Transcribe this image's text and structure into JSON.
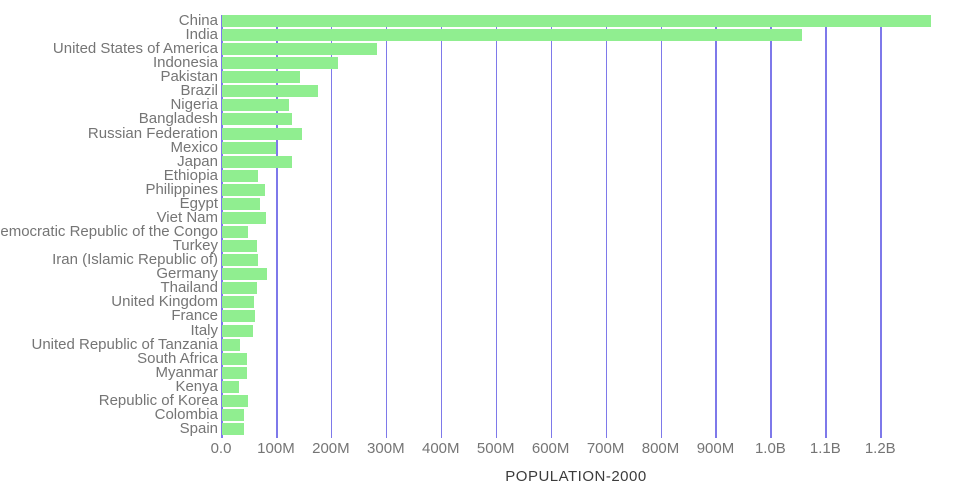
{
  "chart_data": {
    "type": "bar",
    "orientation": "horizontal",
    "title": "",
    "xlabel": "POPULATION-2000",
    "ylabel": "",
    "value_unit": "millions of people",
    "legend": "none",
    "grid": "vertical",
    "categories": [
      "China",
      "India",
      "United States of America",
      "Indonesia",
      "Pakistan",
      "Brazil",
      "Nigeria",
      "Bangladesh",
      "Russian Federation",
      "Mexico",
      "Japan",
      "Ethiopia",
      "Philippines",
      "Egypt",
      "Viet Nam",
      "Democratic Republic of the Congo",
      "Turkey",
      "Iran (Islamic Republic of)",
      "Germany",
      "Thailand",
      "United Kingdom",
      "France",
      "Italy",
      "United Republic of Tanzania",
      "South Africa",
      "Myanmar",
      "Kenya",
      "Republic of Korea",
      "Colombia",
      "Spain"
    ],
    "values": [
      1290.6,
      1056.6,
      281.7,
      211.5,
      142.3,
      174.8,
      122.3,
      127.7,
      146.4,
      98.9,
      126.8,
      66.2,
      78.0,
      68.8,
      79.9,
      47.1,
      63.2,
      65.5,
      81.4,
      63.0,
      58.9,
      59.6,
      56.7,
      33.5,
      45.0,
      45.5,
      30.9,
      46.8,
      39.6,
      40.8
    ],
    "xlim": [
      0,
      1345
    ],
    "xticks": [
      {
        "label": "0.0",
        "m": 0
      },
      {
        "label": "100M",
        "m": 100
      },
      {
        "label": "200M",
        "m": 200
      },
      {
        "label": "300M",
        "m": 300
      },
      {
        "label": "400M",
        "m": 400
      },
      {
        "label": "500M",
        "m": 500
      },
      {
        "label": "600M",
        "m": 600
      },
      {
        "label": "700M",
        "m": 700
      },
      {
        "label": "800M",
        "m": 800
      },
      {
        "label": "900M",
        "m": 900
      },
      {
        "label": "1.0B",
        "m": 1000
      },
      {
        "label": "1.1B",
        "m": 1100
      },
      {
        "label": "1.2B",
        "m": 1200
      }
    ],
    "colors": {
      "bar": "#90ee90",
      "grid": "#7e79ea",
      "category_label": "#757575",
      "tick_label": "#757575",
      "axis_title": "#3c3c3c",
      "background": "#ffffff"
    }
  }
}
